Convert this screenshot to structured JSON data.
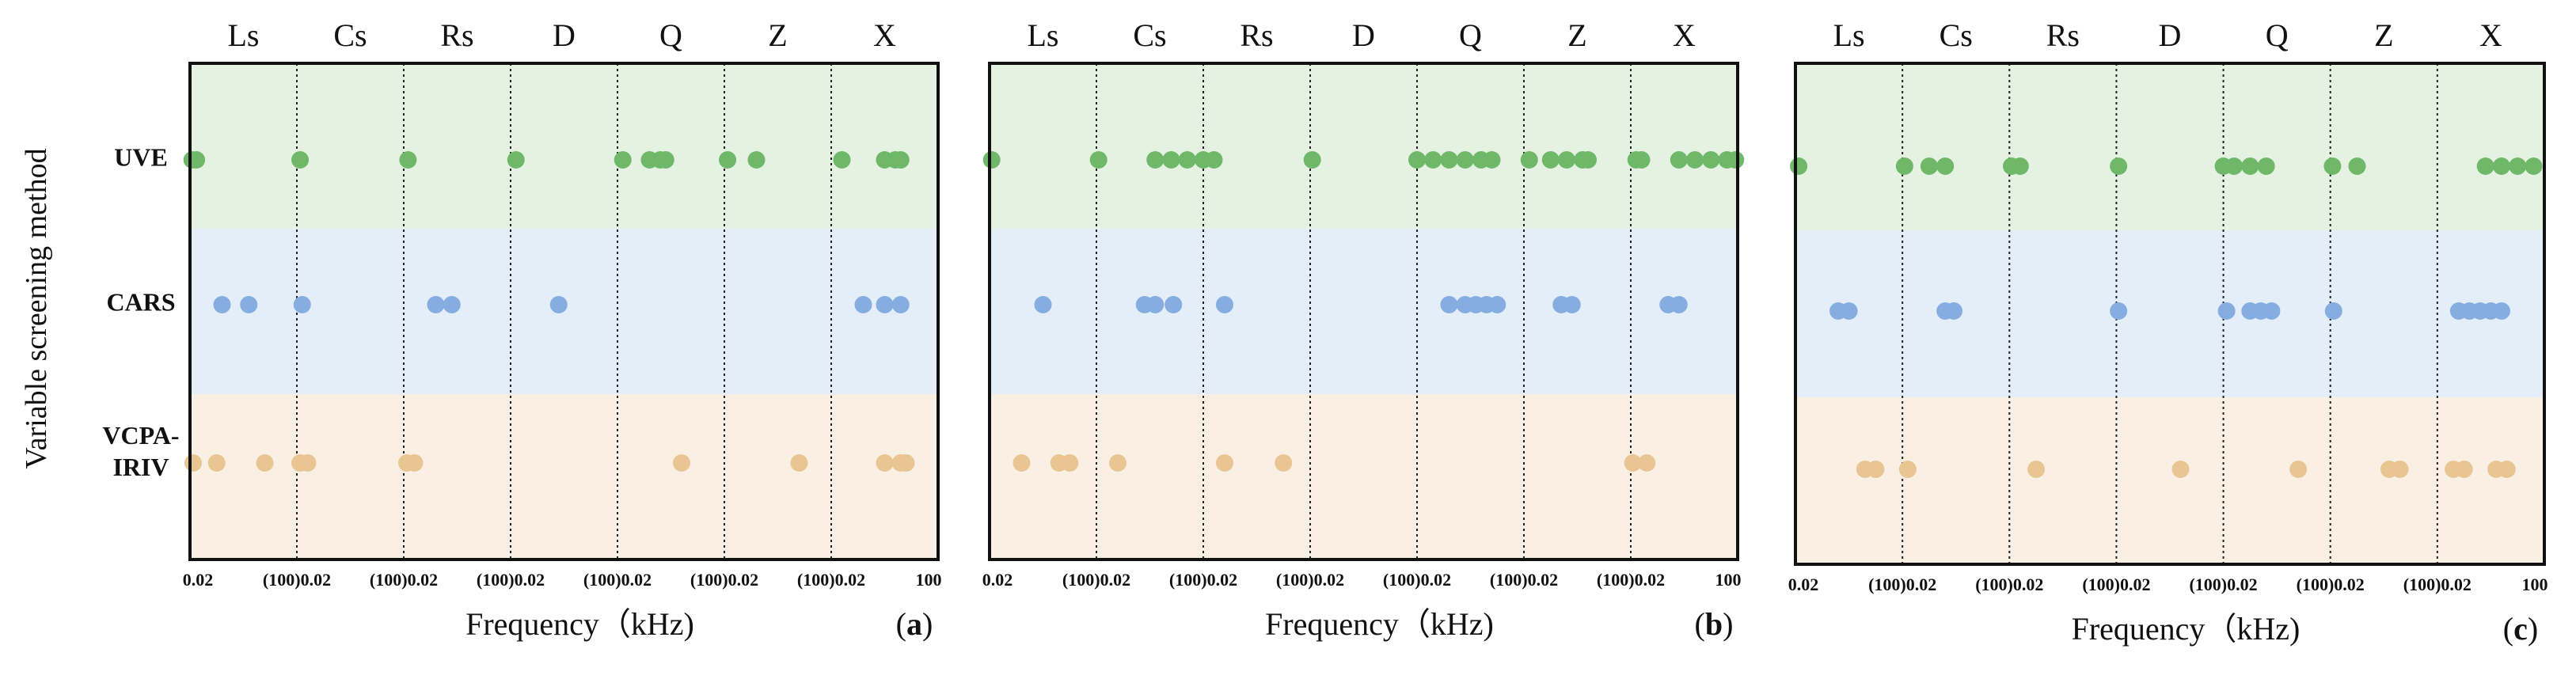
{
  "figure": {
    "y_axis_title": "Variable screening method",
    "method_labels": [
      "UVE",
      "CARS",
      "VCPA-\nIRIV"
    ],
    "band_colors": [
      "#e6f2e1",
      "#e3eef8",
      "#f9f0e3"
    ],
    "dot_colors": [
      "#6fb86a",
      "#86ade0",
      "#e8c592"
    ]
  },
  "chart_data": [
    {
      "type": "scatter",
      "panel_label": "(a)",
      "top_labels": [
        "Ls",
        "Cs",
        "Rs",
        "D",
        "Q",
        "Z",
        "X"
      ],
      "x_tick_labels": [
        "0.02",
        "(100)0.02",
        "(100)0.02",
        "(100)0.02",
        "(100)0.02",
        "(100)0.02",
        "(100)0.02",
        "100"
      ],
      "xlabel": "Frequency（kHz)",
      "xlim": [
        0,
        7
      ],
      "series": [
        {
          "name": "UVE",
          "x": [
            0.02,
            0.06,
            1.03,
            2.04,
            3.05,
            4.05,
            4.3,
            4.4,
            4.45,
            5.03,
            5.3,
            6.1,
            6.5,
            6.6,
            6.65
          ]
        },
        {
          "name": "CARS",
          "x": [
            0.3,
            0.55,
            1.05,
            2.3,
            2.45,
            3.45,
            6.3,
            6.5,
            6.65
          ]
        },
        {
          "name": "VCPA-IRIV",
          "x": [
            0.03,
            0.25,
            0.7,
            1.03,
            1.1,
            2.03,
            2.1,
            4.6,
            5.7,
            6.5,
            6.65,
            6.7
          ]
        }
      ]
    },
    {
      "type": "scatter",
      "panel_label": "(b)",
      "top_labels": [
        "Ls",
        "Cs",
        "Rs",
        "D",
        "Q",
        "Z",
        "X"
      ],
      "x_tick_labels": [
        "0.02",
        "(100)0.02",
        "(100)0.02",
        "(100)0.02",
        "(100)0.02",
        "(100)0.02",
        "(100)0.02",
        "100"
      ],
      "xlabel": "Frequency（kHz)",
      "xlim": [
        0,
        7
      ],
      "series": [
        {
          "name": "UVE",
          "x": [
            0.02,
            1.02,
            1.55,
            1.7,
            1.85,
            2.0,
            2.1,
            3.02,
            4.0,
            4.15,
            4.3,
            4.45,
            4.6,
            4.7,
            5.05,
            5.25,
            5.4,
            5.55,
            5.6,
            6.05,
            6.1,
            6.45,
            6.6,
            6.75,
            6.9,
            6.98
          ]
        },
        {
          "name": "CARS",
          "x": [
            0.5,
            1.45,
            1.55,
            1.72,
            2.2,
            4.3,
            4.45,
            4.55,
            4.65,
            4.75,
            5.35,
            5.45,
            6.35,
            6.45
          ]
        },
        {
          "name": "VCPA-IRIV",
          "x": [
            0.3,
            0.65,
            0.75,
            1.2,
            2.2,
            2.75,
            6.02,
            6.15
          ]
        }
      ]
    },
    {
      "type": "scatter",
      "panel_label": "(c)",
      "top_labels": [
        "Ls",
        "Cs",
        "Rs",
        "D",
        "Q",
        "Z",
        "X"
      ],
      "x_tick_labels": [
        "0.02",
        "(100)0.02",
        "(100)0.02",
        "(100)0.02",
        "(100)0.02",
        "(100)0.02",
        "(100)0.02",
        "100"
      ],
      "xlabel": "Frequency（kHz)",
      "xlim": [
        0,
        7
      ],
      "series": [
        {
          "name": "UVE",
          "x": [
            0.03,
            1.02,
            1.25,
            1.4,
            2.02,
            2.1,
            3.02,
            4.0,
            4.1,
            4.25,
            4.4,
            5.02,
            5.25,
            6.45,
            6.6,
            6.75,
            6.9
          ]
        },
        {
          "name": "CARS",
          "x": [
            0.4,
            0.5,
            1.4,
            1.48,
            3.02,
            4.03,
            4.25,
            4.35,
            4.45,
            5.03,
            6.2,
            6.3,
            6.4,
            6.5,
            6.6
          ]
        },
        {
          "name": "VCPA-IRIV",
          "x": [
            0.65,
            0.75,
            1.05,
            2.25,
            3.6,
            4.7,
            5.55,
            5.65,
            6.15,
            6.25,
            6.55,
            6.65
          ]
        }
      ]
    }
  ]
}
